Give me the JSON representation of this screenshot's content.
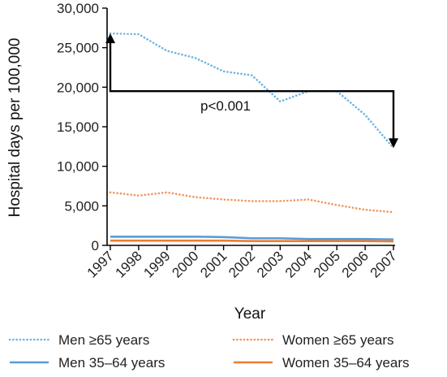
{
  "chart_data": {
    "type": "line",
    "title": "",
    "xlabel": "Year",
    "ylabel": "Hospital days per 100,000",
    "x": [
      "1997",
      "1998",
      "1999",
      "2000",
      "2001",
      "2002",
      "2003",
      "2004",
      "2005",
      "2006",
      "2007"
    ],
    "ylim": [
      0,
      30000
    ],
    "yticks": [
      0,
      5000,
      10000,
      15000,
      20000,
      25000,
      30000
    ],
    "ytick_labels": [
      "0",
      "5,000",
      "10,000",
      "15,000",
      "20,000",
      "25,000",
      "30,000"
    ],
    "grid": false,
    "legend_position": "bottom",
    "series": [
      {
        "name": "Men ≥65 years",
        "style": "dotted",
        "color": "#6cb4e4",
        "values": [
          26800,
          26700,
          24600,
          23700,
          22000,
          21500,
          18200,
          19500,
          19500,
          16500,
          12300
        ]
      },
      {
        "name": "Women ≥65 years",
        "style": "dotted",
        "color": "#f0955a",
        "values": [
          6700,
          6300,
          6700,
          6100,
          5800,
          5600,
          5600,
          5800,
          5100,
          4500,
          4200
        ]
      },
      {
        "name": "Men 35–64 years",
        "style": "solid",
        "color": "#5b9bd5",
        "values": [
          1100,
          1100,
          1100,
          1100,
          1050,
          900,
          900,
          800,
          800,
          800,
          750
        ]
      },
      {
        "name": "Women 35–64 years",
        "style": "solid",
        "color": "#ed7d31",
        "values": [
          600,
          600,
          600,
          600,
          600,
          550,
          550,
          550,
          550,
          550,
          500
        ]
      }
    ],
    "annotation": {
      "text": "p<0.001",
      "bracket_level": 19500,
      "from_x": "1997",
      "from_value": 26800,
      "to_x": "2007",
      "to_value": 12300
    }
  }
}
